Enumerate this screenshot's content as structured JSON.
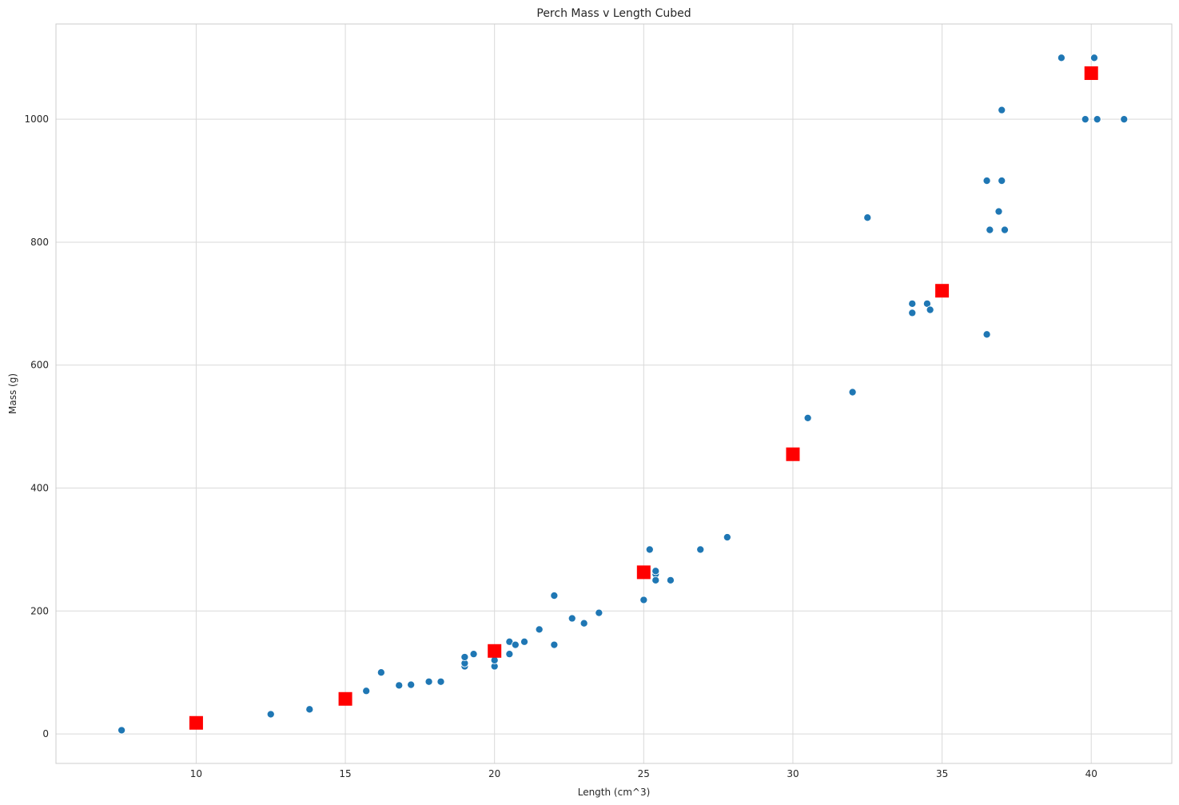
{
  "chart_data": {
    "type": "scatter",
    "title": "Perch Mass v Length Cubed",
    "xlabel": "Length (cm^3)",
    "ylabel": "Mass (g)",
    "xlim": [
      5.3,
      42.7
    ],
    "ylim": [
      -48,
      1155
    ],
    "xticks": [
      10,
      15,
      20,
      25,
      30,
      35,
      40
    ],
    "yticks": [
      0,
      200,
      400,
      600,
      800,
      1000
    ],
    "grid": true,
    "style": {
      "background": "#ffffff",
      "grid_color": "#d9d9d9",
      "axes_edge": "#cccccc"
    },
    "series": [
      {
        "marker": "circle",
        "color": "#1f77b4",
        "points": [
          [
            7.5,
            6
          ],
          [
            12.5,
            32
          ],
          [
            13.8,
            40
          ],
          [
            15.7,
            70
          ],
          [
            16.2,
            100
          ],
          [
            16.8,
            79
          ],
          [
            17.2,
            80
          ],
          [
            17.8,
            85
          ],
          [
            18.2,
            85
          ],
          [
            19.0,
            110
          ],
          [
            19.0,
            115
          ],
          [
            19.0,
            125
          ],
          [
            19.3,
            130
          ],
          [
            20.0,
            110
          ],
          [
            20.0,
            120
          ],
          [
            20.5,
            130
          ],
          [
            20.5,
            150
          ],
          [
            20.7,
            145
          ],
          [
            21.0,
            150
          ],
          [
            21.5,
            170
          ],
          [
            22.0,
            225
          ],
          [
            22.0,
            145
          ],
          [
            22.6,
            188
          ],
          [
            23.0,
            180
          ],
          [
            23.5,
            197
          ],
          [
            25.0,
            218
          ],
          [
            25.2,
            300
          ],
          [
            25.4,
            260
          ],
          [
            25.4,
            265
          ],
          [
            25.4,
            250
          ],
          [
            25.9,
            250
          ],
          [
            26.9,
            300
          ],
          [
            27.8,
            320
          ],
          [
            30.5,
            514
          ],
          [
            32.0,
            556
          ],
          [
            32.5,
            840
          ],
          [
            34.0,
            685
          ],
          [
            34.0,
            700
          ],
          [
            34.5,
            700
          ],
          [
            34.6,
            690
          ],
          [
            36.5,
            900
          ],
          [
            36.5,
            650
          ],
          [
            36.6,
            820
          ],
          [
            36.9,
            850
          ],
          [
            37.0,
            900
          ],
          [
            37.0,
            1015
          ],
          [
            37.1,
            820
          ],
          [
            39.0,
            1100
          ],
          [
            39.8,
            1000
          ],
          [
            40.1,
            1100
          ],
          [
            40.2,
            1000
          ],
          [
            41.1,
            1000
          ]
        ]
      },
      {
        "marker": "square",
        "color": "#ff0000",
        "points": [
          [
            10,
            18
          ],
          [
            15,
            57
          ],
          [
            20,
            135
          ],
          [
            25,
            263
          ],
          [
            30,
            455
          ],
          [
            35,
            721
          ],
          [
            40,
            1075
          ]
        ]
      }
    ]
  }
}
